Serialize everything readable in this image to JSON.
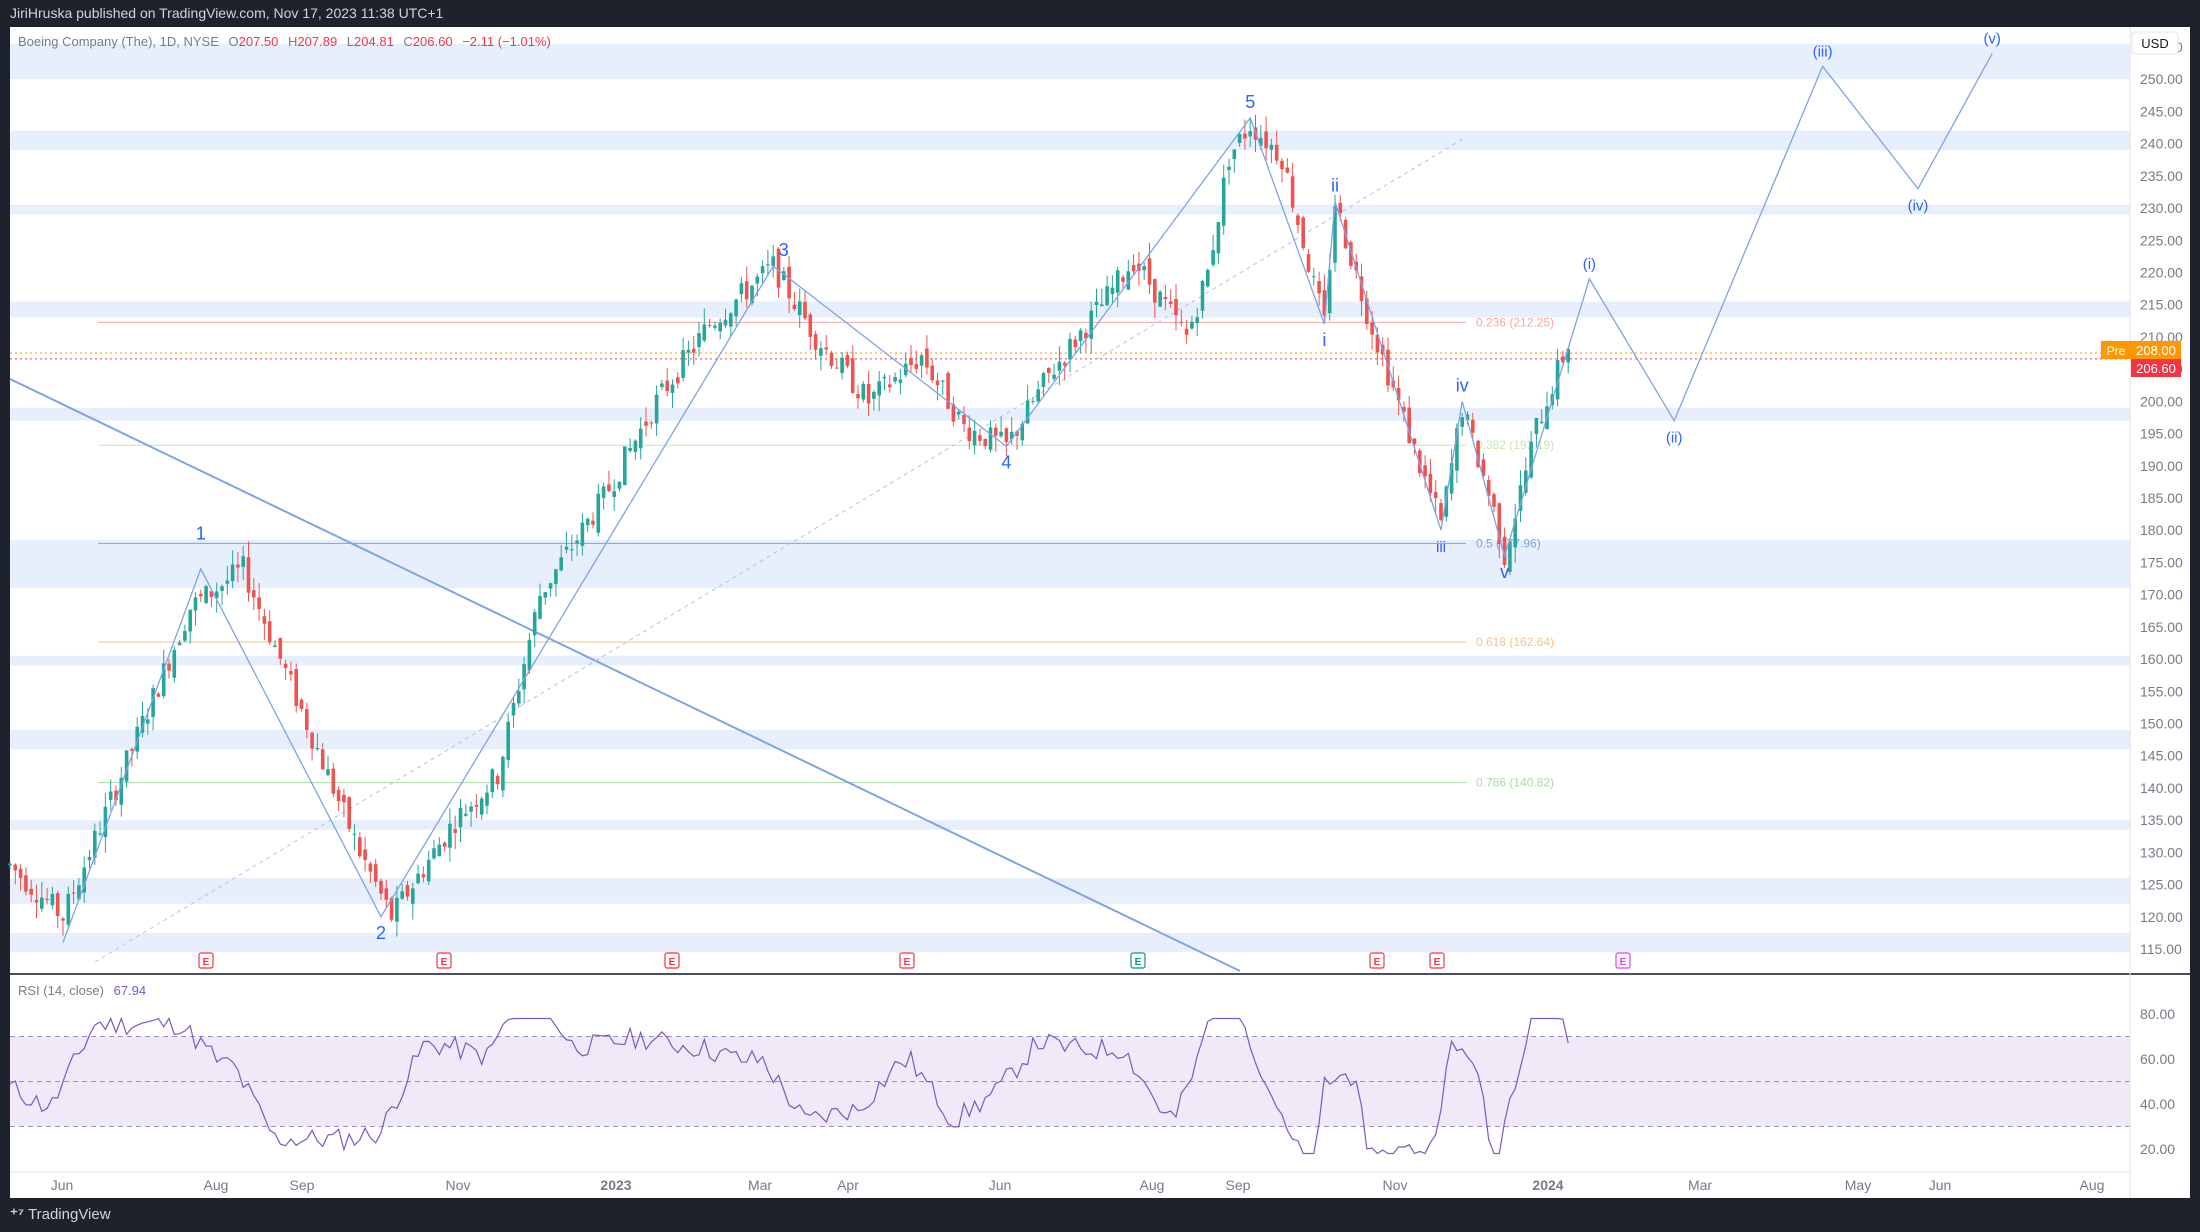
{
  "header": {
    "published": "JiriHruska published on TradingView.com, Nov 17, 2023 11:38 UTC+1"
  },
  "footer": {
    "brand": "TradingView"
  },
  "legend": {
    "symbol": "Boeing Company (The), 1D, NYSE",
    "o_label": "O",
    "o": "207.50",
    "h_label": "H",
    "h": "207.89",
    "l_label": "L",
    "l": "204.81",
    "c_label": "C",
    "c": "206.60",
    "change": "−2.11 (−1.01%)"
  },
  "currency": "USD",
  "price_tags": {
    "pre_label": "Pre",
    "pre": "208.00",
    "last": "206.60"
  },
  "rsi": {
    "label": "RSI (14, close)",
    "value": "67.94"
  },
  "colors": {
    "up": "#26a69a",
    "down": "#ef5350",
    "wave": "#5b8def",
    "zone": "#e8effc",
    "rsi": "#7e57c2",
    "rsi_band": "#efe9f8",
    "earnings": "#f23645",
    "dividend": "#089981"
  },
  "chart_data": {
    "type": "candlestick",
    "price_axis": {
      "ticks": [
        115,
        120,
        125,
        130,
        135,
        140,
        145,
        150,
        155,
        160,
        165,
        170,
        175,
        180,
        185,
        190,
        195,
        200,
        205,
        210,
        215,
        220,
        225,
        230,
        235,
        240,
        245,
        250,
        255
      ]
    },
    "time_axis": [
      "Jun",
      "Aug",
      "Sep",
      "Nov",
      "2023",
      "Mar",
      "Apr",
      "Jun",
      "Aug",
      "Sep",
      "Nov",
      "2024",
      "Mar",
      "May",
      "Jun",
      "Aug"
    ],
    "rsi_axis": [
      20,
      40,
      60,
      80
    ],
    "fib_levels": [
      {
        "label": "0.236 (212.25)",
        "value": 212.25,
        "color": "#f7a7a7"
      },
      {
        "label": "0.382 (193.19)",
        "value": 193.19,
        "color": "#c7e6b3"
      },
      {
        "label": "0.5 (177.96)",
        "value": 177.96,
        "color": "#7ea3e6"
      },
      {
        "label": "0.618 (162.64)",
        "value": 162.64,
        "color": "#f7c28a"
      },
      {
        "label": "0.786 (140.82)",
        "value": 140.82,
        "color": "#a6dca3"
      }
    ],
    "wave_labels": [
      {
        "label": "1",
        "x": 18,
        "y": 177
      },
      {
        "label": "2",
        "x": 35,
        "y": 120
      },
      {
        "label": "3",
        "x": 73,
        "y": 221
      },
      {
        "label": "4",
        "x": 94,
        "y": 193
      },
      {
        "label": "5",
        "x": 117,
        "y": 244
      },
      {
        "label": "i",
        "x": 124,
        "y": 212
      },
      {
        "label": "ii",
        "x": 125,
        "y": 231
      },
      {
        "label": "iii",
        "x": 135,
        "y": 180
      },
      {
        "label": "iv",
        "x": 137,
        "y": 200
      },
      {
        "label": "v",
        "x": 141,
        "y": 176
      },
      {
        "label": "(i)",
        "x": 149,
        "y": 219
      },
      {
        "label": "(ii)",
        "x": 157,
        "y": 197
      },
      {
        "label": "(iii)",
        "x": 171,
        "y": 252
      },
      {
        "label": "(iv)",
        "x": 180,
        "y": 233
      },
      {
        "label": "(v)",
        "x": 187,
        "y": 254
      }
    ],
    "earnings_markers": 8
  }
}
